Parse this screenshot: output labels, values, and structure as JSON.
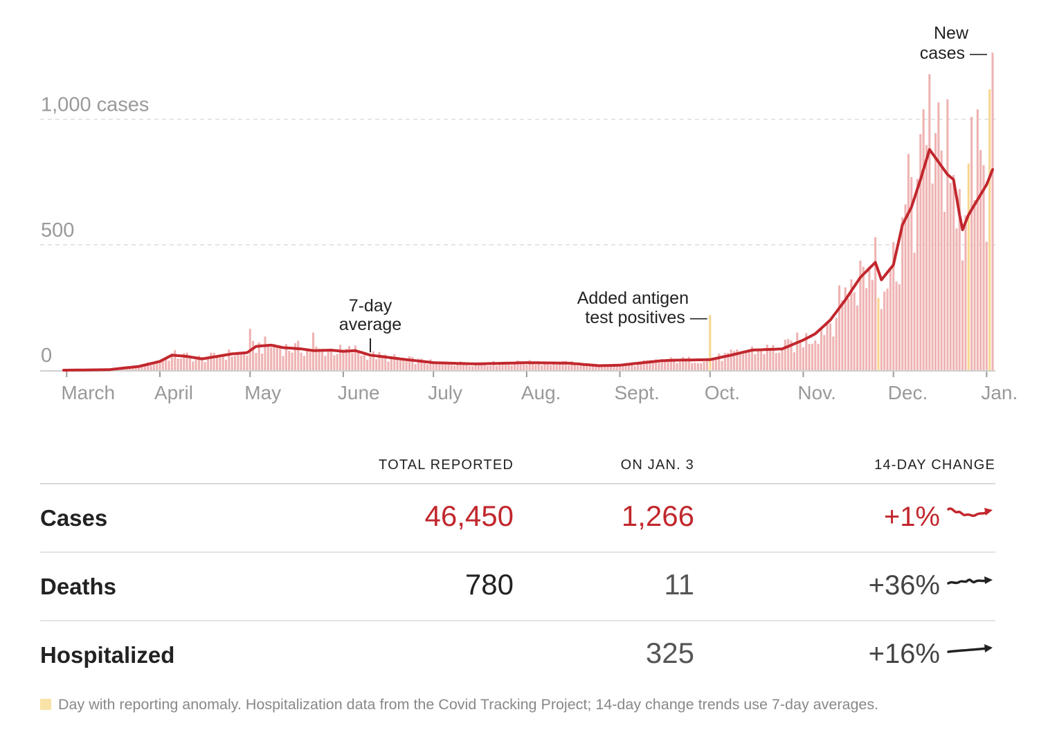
{
  "chart_data": {
    "type": "bar",
    "start_date": "2020-02-29",
    "end_date": "2021-01-03",
    "y_ticks": [
      {
        "value": 0,
        "label": "0"
      },
      {
        "value": 500,
        "label": "500"
      },
      {
        "value": 1000,
        "label": "1,000 cases"
      }
    ],
    "ylim": [
      0,
      1300
    ],
    "grid": true,
    "month_labels": [
      {
        "date": "2020-03-01",
        "label": "March"
      },
      {
        "date": "2020-04-01",
        "label": "April"
      },
      {
        "date": "2020-05-01",
        "label": "May"
      },
      {
        "date": "2020-06-01",
        "label": "June"
      },
      {
        "date": "2020-07-01",
        "label": "July"
      },
      {
        "date": "2020-08-01",
        "label": "Aug."
      },
      {
        "date": "2020-09-01",
        "label": "Sept."
      },
      {
        "date": "2020-10-01",
        "label": "Oct."
      },
      {
        "date": "2020-11-01",
        "label": "Nov."
      },
      {
        "date": "2020-12-01",
        "label": "Dec."
      },
      {
        "date": "2021-01-01",
        "label": "Jan."
      }
    ],
    "series": [
      {
        "name": "New cases",
        "role": "daily_bars"
      },
      {
        "name": "7-day average",
        "role": "line"
      }
    ],
    "avg_keypoints": [
      [
        "2020-02-29",
        0
      ],
      [
        "2020-03-15",
        2
      ],
      [
        "2020-03-25",
        15
      ],
      [
        "2020-04-01",
        35
      ],
      [
        "2020-04-05",
        60
      ],
      [
        "2020-04-10",
        55
      ],
      [
        "2020-04-15",
        45
      ],
      [
        "2020-04-20",
        55
      ],
      [
        "2020-04-25",
        65
      ],
      [
        "2020-04-30",
        70
      ],
      [
        "2020-05-03",
        95
      ],
      [
        "2020-05-08",
        100
      ],
      [
        "2020-05-12",
        90
      ],
      [
        "2020-05-18",
        85
      ],
      [
        "2020-05-22",
        78
      ],
      [
        "2020-05-28",
        80
      ],
      [
        "2020-06-01",
        75
      ],
      [
        "2020-06-05",
        78
      ],
      [
        "2020-06-10",
        60
      ],
      [
        "2020-06-20",
        45
      ],
      [
        "2020-07-01",
        30
      ],
      [
        "2020-07-15",
        25
      ],
      [
        "2020-08-01",
        30
      ],
      [
        "2020-08-15",
        28
      ],
      [
        "2020-08-25",
        18
      ],
      [
        "2020-09-01",
        20
      ],
      [
        "2020-09-15",
        38
      ],
      [
        "2020-09-20",
        40
      ],
      [
        "2020-10-01",
        42
      ],
      [
        "2020-10-08",
        60
      ],
      [
        "2020-10-15",
        80
      ],
      [
        "2020-10-25",
        85
      ],
      [
        "2020-11-01",
        120
      ],
      [
        "2020-11-05",
        145
      ],
      [
        "2020-11-10",
        200
      ],
      [
        "2020-11-15",
        280
      ],
      [
        "2020-11-20",
        370
      ],
      [
        "2020-11-25",
        430
      ],
      [
        "2020-11-27",
        360
      ],
      [
        "2020-12-01",
        420
      ],
      [
        "2020-12-04",
        580
      ],
      [
        "2020-12-07",
        650
      ],
      [
        "2020-12-10",
        760
      ],
      [
        "2020-12-13",
        880
      ],
      [
        "2020-12-16",
        830
      ],
      [
        "2020-12-19",
        780
      ],
      [
        "2020-12-21",
        760
      ],
      [
        "2020-12-23",
        620
      ],
      [
        "2020-12-24",
        560
      ],
      [
        "2020-12-26",
        620
      ],
      [
        "2020-12-29",
        680
      ],
      [
        "2021-01-01",
        740
      ],
      [
        "2021-01-03",
        800
      ]
    ],
    "spikes": [
      [
        "2020-05-01",
        165
      ],
      [
        "2020-05-22",
        150
      ],
      [
        "2020-10-01",
        220
      ],
      [
        "2020-11-15",
        330
      ],
      [
        "2020-11-25",
        530
      ],
      [
        "2020-12-07",
        770
      ],
      [
        "2020-12-11",
        1040
      ],
      [
        "2020-12-13",
        1180
      ],
      [
        "2020-12-19",
        1080
      ],
      [
        "2020-12-27",
        1010
      ],
      [
        "2020-12-29",
        1040
      ],
      [
        "2021-01-02",
        1120
      ],
      [
        "2021-01-03",
        1266
      ]
    ],
    "anomaly_dates": [
      "2020-10-01",
      "2020-11-26",
      "2020-12-26",
      "2021-01-02"
    ],
    "annotations": [
      {
        "text_lines": [
          "7-day",
          "average"
        ],
        "date": "2020-06-10"
      },
      {
        "text_lines": [
          "Added antigen",
          "test positives —"
        ],
        "date": "2020-10-01"
      },
      {
        "text_lines": [
          "New",
          "cases —"
        ],
        "date": "2021-01-03"
      }
    ],
    "colors": {
      "bar": "#efb3b3",
      "bar_anomaly": "#f8d68f",
      "line": "#c1272d",
      "grid": "#dcdcdc",
      "tick_text": "#999999",
      "annotation_text": "#222222"
    }
  },
  "table": {
    "headers": {
      "total": "TOTAL REPORTED",
      "on_day": "ON JAN. 3",
      "change": "14-DAY CHANGE"
    },
    "rows": [
      {
        "label": "Cases",
        "total": "46,450",
        "on_day": "1,266",
        "change": "+1%"
      },
      {
        "label": "Deaths",
        "total": "780",
        "on_day": "11",
        "change": "+36%"
      },
      {
        "label": "Hospitalized",
        "total": "",
        "on_day": "325",
        "change": "+16%"
      }
    ]
  },
  "footnote": "Day with reporting anomaly. Hospitalization data from the Covid Tracking Project; 14-day change trends use 7-day averages."
}
